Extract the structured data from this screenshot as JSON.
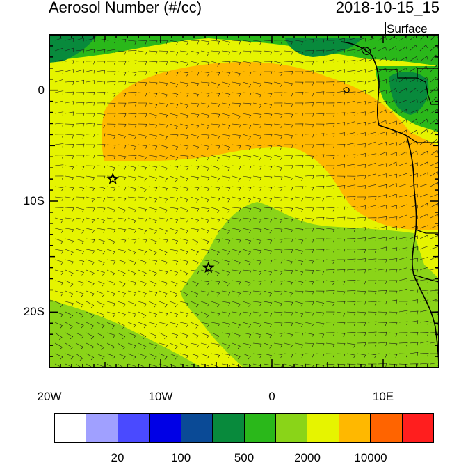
{
  "header": {
    "title": "Aerosol Number (#/cc)",
    "datetime": "2018-10-15_15",
    "level": "Surface"
  },
  "map": {
    "lat_labels": [
      "0",
      "10S",
      "20S"
    ],
    "lon_labels": [
      "20W",
      "10W",
      "0",
      "10E"
    ],
    "lat_values": [
      0,
      -10,
      -20
    ],
    "lon_values": [
      -20,
      -10,
      0,
      10
    ],
    "extent": {
      "lon_min": -20,
      "lon_max": 15,
      "lat_min": -25,
      "lat_max": 5
    },
    "markers": [
      {
        "name": "star",
        "lon": -14.3,
        "lat": -8.0
      },
      {
        "name": "star",
        "lon": -5.7,
        "lat": -16.0
      }
    ]
  },
  "colorbar": {
    "colors": [
      "#ffffff",
      "#a0a0ff",
      "#4a4aff",
      "#0000e6",
      "#0a4a96",
      "#088a3c",
      "#2ab81a",
      "#8ad418",
      "#e6f400",
      "#ffb800",
      "#ff6400",
      "#ff1e1e"
    ],
    "labels": [
      "20",
      "100",
      "500",
      "2000",
      "10000"
    ]
  },
  "field_colors": {
    "yellow": "#e6f400",
    "orange": "#ffb800",
    "lightgreen": "#8ad418",
    "green": "#2ab81a",
    "darkgreen": "#088a3c"
  }
}
